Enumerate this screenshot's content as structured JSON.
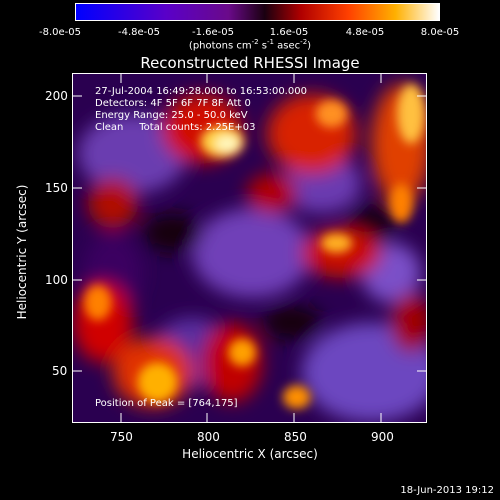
{
  "colorbar": {
    "ticks": [
      "-8.0e-05",
      "-4.8e-05",
      "-1.6e-05",
      "1.6e-05",
      "4.8e-05",
      "8.0e-05"
    ],
    "units_prefix": "(photons cm",
    "units_exp1": "-2",
    "units_mid": " s",
    "units_exp2": "-1",
    "units_mid2": " asec",
    "units_exp3": "-2",
    "units_suffix": ")"
  },
  "title": "Reconstructed RHESSI Image",
  "info": {
    "line1": "27-Jul-2004 16:49:28.000 to 16:53:00.000",
    "line2": "Detectors: 4F 5F 6F 7F 8F  Att 0",
    "line3": "Energy Range: 25.0 - 50.0 keV",
    "line4": "Clean     Total counts: 2.25E+03",
    "peak": "Position of Peak = [764,175]"
  },
  "axes": {
    "xlabel": "Heliocentric X (arcsec)",
    "ylabel": "Heliocentric Y (arcsec)",
    "xticks": [
      "750",
      "800",
      "850",
      "900"
    ],
    "yticks": [
      "50",
      "100",
      "150",
      "200"
    ]
  },
  "datestamp": "18-Jun-2013 19:12"
}
